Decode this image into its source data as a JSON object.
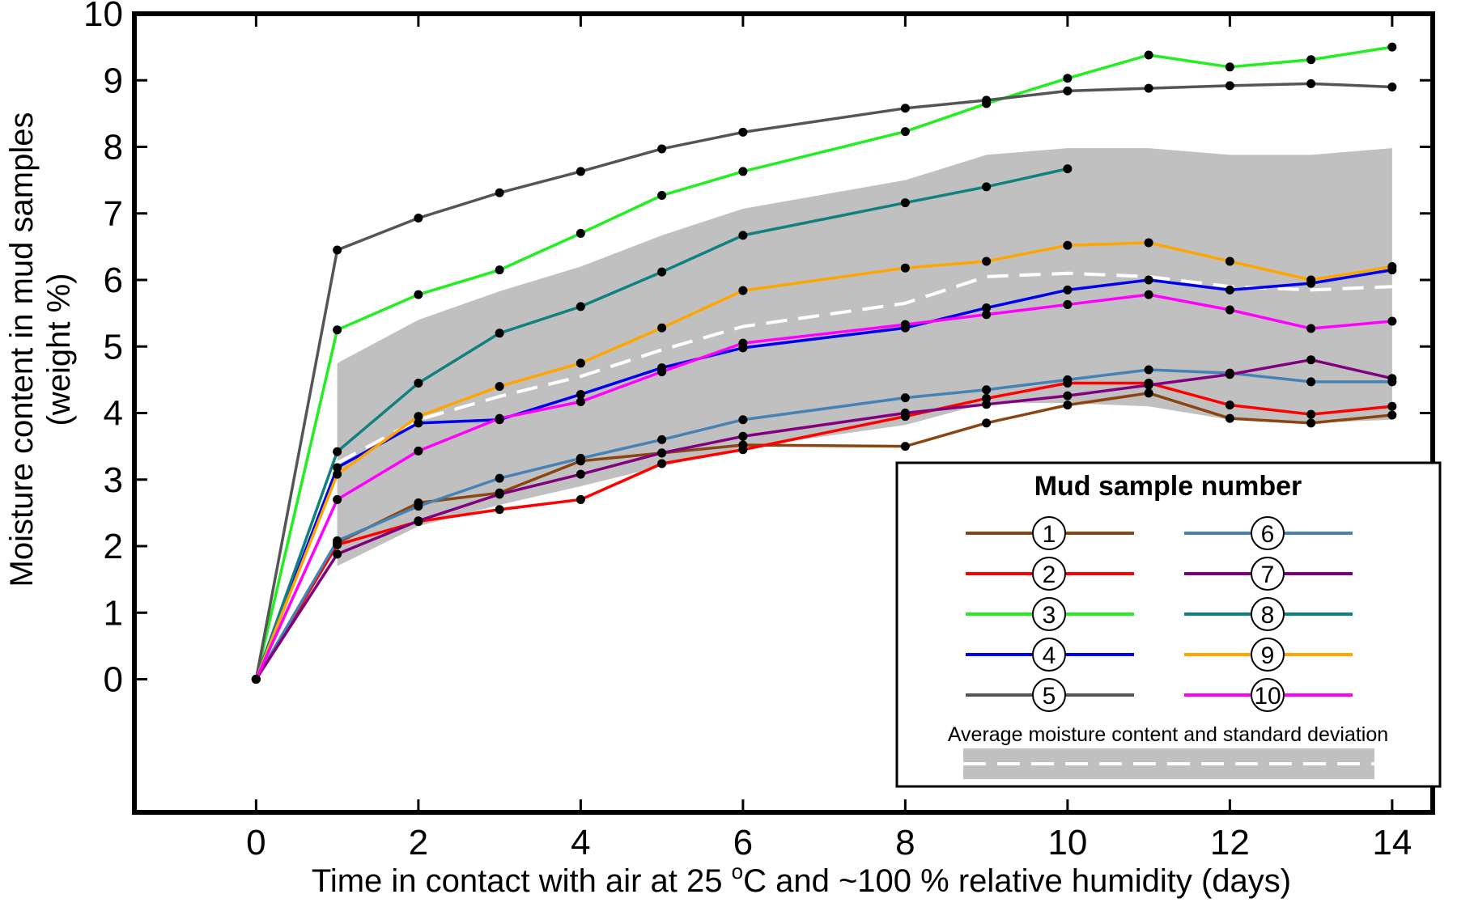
{
  "chart_data": {
    "type": "line",
    "xlabel_prefix": "Time in contact with air at 25 ",
    "xlabel_sup": "o",
    "xlabel_suffix": "C and ~100 % relative humidity (days)",
    "ylabel_line1": "Moisture content in mud samples",
    "ylabel_line2": "(weight %)",
    "xlim": [
      -1.5,
      14.5
    ],
    "ylim": [
      -2,
      10
    ],
    "xticks": [
      0,
      2,
      4,
      6,
      8,
      10,
      12,
      14
    ],
    "yticks": [
      0,
      1,
      2,
      3,
      4,
      5,
      6,
      7,
      8,
      9,
      10
    ],
    "x": [
      0,
      1,
      2,
      3,
      4,
      5,
      6,
      8,
      9,
      10,
      11,
      12,
      13,
      14
    ],
    "series": [
      {
        "name": "1",
        "color": "#8B4513",
        "values": [
          0,
          2.05,
          2.65,
          2.8,
          3.28,
          3.4,
          3.52,
          3.5,
          3.85,
          4.12,
          4.3,
          3.92,
          3.85,
          3.97
        ]
      },
      {
        "name": "2",
        "color": "#FF0000",
        "values": [
          0,
          2.02,
          2.37,
          2.55,
          2.7,
          3.24,
          3.45,
          3.95,
          4.22,
          4.45,
          4.45,
          4.12,
          3.98,
          4.1
        ]
      },
      {
        "name": "3",
        "color": "#22EE22",
        "values": [
          0,
          5.25,
          5.78,
          6.15,
          6.7,
          7.27,
          7.63,
          8.23,
          8.65,
          9.03,
          9.38,
          9.2,
          9.31,
          9.5
        ]
      },
      {
        "name": "4",
        "color": "#0000EE",
        "values": [
          0,
          3.18,
          3.85,
          3.9,
          4.28,
          4.68,
          4.98,
          5.28,
          5.58,
          5.85,
          6.0,
          5.85,
          5.95,
          6.15
        ]
      },
      {
        "name": "5",
        "color": "#555555",
        "values": [
          0,
          6.45,
          6.93,
          7.31,
          7.63,
          7.97,
          8.22,
          8.58,
          8.7,
          8.84,
          8.88,
          8.92,
          8.95,
          8.9
        ]
      },
      {
        "name": "6",
        "color": "#4682B4",
        "values": [
          0,
          2.08,
          2.6,
          3.02,
          3.32,
          3.6,
          3.9,
          4.23,
          4.35,
          4.5,
          4.65,
          4.6,
          4.47,
          4.47
        ]
      },
      {
        "name": "7",
        "color": "#800080",
        "values": [
          0,
          1.88,
          2.38,
          2.78,
          3.08,
          3.4,
          3.65,
          4.0,
          4.13,
          4.26,
          4.42,
          4.58,
          4.8,
          4.52
        ]
      },
      {
        "name": "8",
        "color": "#108080",
        "values": [
          0,
          3.42,
          4.45,
          5.2,
          5.6,
          6.12,
          6.67,
          7.16,
          7.4,
          7.67,
          null,
          null,
          null,
          null
        ]
      },
      {
        "name": "9",
        "color": "#FFA500",
        "values": [
          0,
          3.08,
          3.95,
          4.4,
          4.75,
          5.28,
          5.84,
          6.18,
          6.28,
          6.52,
          6.56,
          6.28,
          6.0,
          6.2
        ]
      },
      {
        "name": "10",
        "color": "#FF00FF",
        "values": [
          0,
          2.7,
          3.43,
          3.92,
          4.17,
          4.62,
          5.05,
          5.33,
          5.48,
          5.63,
          5.78,
          5.55,
          5.27,
          5.38
        ]
      }
    ],
    "average": {
      "label": "Average moisture content",
      "x": [
        1,
        2,
        3,
        4,
        5,
        6,
        8,
        9,
        10,
        11,
        12,
        13,
        14
      ],
      "values": [
        3.25,
        3.9,
        4.25,
        4.55,
        4.95,
        5.3,
        5.65,
        6.05,
        6.1,
        6.05,
        5.9,
        5.85,
        5.9
      ]
    },
    "std_band": {
      "label": "standard deviation",
      "x": [
        1,
        2,
        3,
        4,
        5,
        6,
        8,
        9,
        10,
        11,
        12,
        13,
        14
      ],
      "lower": [
        1.7,
        2.3,
        2.62,
        2.9,
        3.2,
        3.48,
        3.82,
        4.15,
        4.15,
        4.1,
        3.9,
        3.85,
        3.9
      ],
      "upper": [
        4.75,
        5.4,
        5.83,
        6.2,
        6.67,
        7.07,
        7.5,
        7.88,
        7.98,
        7.98,
        7.88,
        7.88,
        7.98
      ]
    },
    "legend": {
      "title": "Mud sample number",
      "note": "Average moisture content and standard deviation",
      "position": "bottom-right"
    }
  }
}
